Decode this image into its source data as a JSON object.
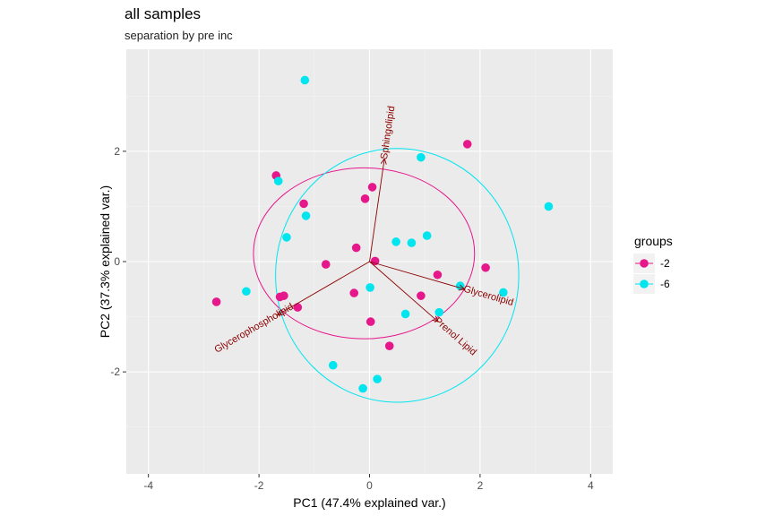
{
  "chart_data": {
    "type": "scatter",
    "title": "all samples",
    "subtitle": "separation by pre inc",
    "xlabel": "PC1 (47.4% explained var.)",
    "ylabel": "PC2 (37.3% explained var.)",
    "xlim": [
      -4.4,
      4.4
    ],
    "ylim": [
      -3.85,
      3.85
    ],
    "xticks": [
      -4,
      -2,
      0,
      2,
      4
    ],
    "yticks": [
      -2,
      0,
      2
    ],
    "tick_labels_x": [
      "-4",
      "-2",
      "0",
      "2",
      "4"
    ],
    "tick_labels_y": [
      "-2",
      "0",
      "2"
    ],
    "grid": true,
    "legend": {
      "title": "groups",
      "placement": "right",
      "entries": [
        "-2",
        "-6"
      ]
    },
    "series": [
      {
        "name": "-2",
        "color": "#e6178a",
        "points": [
          [
            1.77,
            2.13
          ],
          [
            -1.69,
            1.56
          ],
          [
            0.05,
            1.35
          ],
          [
            -0.08,
            1.14
          ],
          [
            -1.19,
            1.05
          ],
          [
            -0.24,
            0.25
          ],
          [
            -0.79,
            -0.05
          ],
          [
            0.1,
            0.01
          ],
          [
            2.1,
            -0.11
          ],
          [
            1.23,
            -0.24
          ],
          [
            -1.62,
            -0.64
          ],
          [
            -1.55,
            -0.62
          ],
          [
            -0.28,
            -0.57
          ],
          [
            0.93,
            -0.62
          ],
          [
            -1.3,
            -0.83
          ],
          [
            -2.77,
            -0.73
          ],
          [
            0.02,
            -1.09
          ],
          [
            0.36,
            -1.53
          ]
        ]
      },
      {
        "name": "-6",
        "color": "#00e5ee",
        "points": [
          [
            -1.17,
            3.29
          ],
          [
            0.93,
            1.89
          ],
          [
            3.24,
            1.0
          ],
          [
            -1.65,
            1.46
          ],
          [
            -1.15,
            0.83
          ],
          [
            -1.5,
            0.44
          ],
          [
            0.48,
            0.36
          ],
          [
            0.76,
            0.34
          ],
          [
            1.04,
            0.47
          ],
          [
            1.64,
            -0.44
          ],
          [
            2.42,
            -0.56
          ],
          [
            -2.23,
            -0.54
          ],
          [
            0.01,
            -0.47
          ],
          [
            0.65,
            -0.95
          ],
          [
            1.26,
            -0.92
          ],
          [
            -0.66,
            -1.88
          ],
          [
            0.14,
            -2.13
          ],
          [
            -0.12,
            -2.3
          ]
        ]
      }
    ],
    "ellipses": [
      {
        "group": "-2",
        "color": "#e6178a",
        "cx": -0.1,
        "cy": 0.15,
        "rx": 2.0,
        "ry": 1.55
      },
      {
        "group": "-6",
        "color": "#00e5ee",
        "cx": 0.5,
        "cy": -0.25,
        "rx": 2.2,
        "ry": 2.3
      }
    ],
    "loadings": [
      {
        "label": "Sphingolipid",
        "x": 0.27,
        "y": 1.87
      },
      {
        "label": "Glycerolipid",
        "x": 1.72,
        "y": -0.5
      },
      {
        "label": "Glycerophospholipid",
        "x": -1.67,
        "y": -0.97
      },
      {
        "label": "Prenol Lipid",
        "x": 1.24,
        "y": -1.09
      }
    ]
  }
}
